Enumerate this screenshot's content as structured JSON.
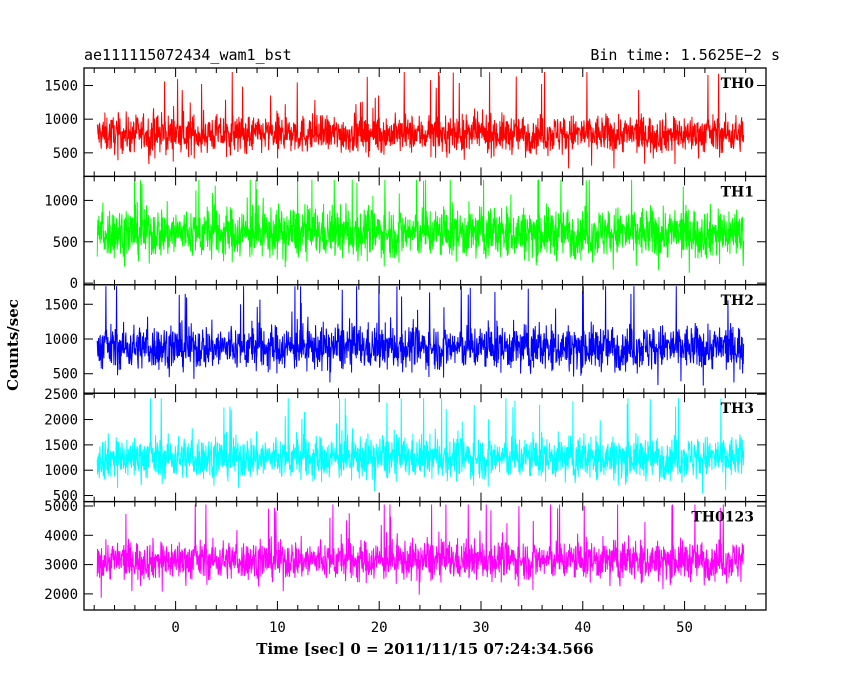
{
  "header": {
    "left_title": "ae111115072434_wam1_bst",
    "right_title": "Bin time: 1.5625E−2 s"
  },
  "chart_data": {
    "type": "line",
    "xlabel": "Time [sec] 0 = 2011/11/15 07:24:34.566",
    "ylabel": "Counts/sec",
    "xlim": [
      -9,
      58
    ],
    "x_range": [
      -7.7,
      55.8
    ],
    "x_ticks": [
      0,
      10,
      20,
      30,
      40,
      50
    ],
    "x_tick_labels": [
      "0",
      "10",
      "20",
      "30",
      "40",
      "50"
    ],
    "panels": [
      {
        "name": "TH0",
        "color": "#ff0000",
        "ylim": [
          150,
          1760
        ],
        "yticks": [
          500,
          1000,
          1500
        ],
        "ytick_labels": [
          "500",
          "1000",
          "1500"
        ],
        "mean": 780,
        "spread": 200,
        "low": 270,
        "high": 1700
      },
      {
        "name": "TH1",
        "color": "#00ff00",
        "ylim": [
          -20,
          1290
        ],
        "yticks": [
          0,
          500,
          1000
        ],
        "ytick_labels": [
          "0",
          "500",
          "1000"
        ],
        "mean": 610,
        "spread": 220,
        "low": 30,
        "high": 1250
      },
      {
        "name": "TH2",
        "color": "#0000ff",
        "ylim": [
          220,
          1780
        ],
        "yticks": [
          500,
          1000,
          1500
        ],
        "ytick_labels": [
          "500",
          "1000",
          "1500"
        ],
        "mean": 880,
        "spread": 230,
        "low": 280,
        "high": 1760
      },
      {
        "name": "TH3",
        "color": "#00ffff",
        "ylim": [
          380,
          2520
        ],
        "yticks": [
          500,
          1000,
          1500,
          2000,
          2500
        ],
        "ytick_labels": [
          "500",
          "1000",
          "1500",
          "2000",
          "2500"
        ],
        "mean": 1250,
        "spread": 300,
        "low": 480,
        "high": 2420
      },
      {
        "name": "TH0123",
        "color": "#ff00ff",
        "ylim": [
          1450,
          5150
        ],
        "yticks": [
          2000,
          3000,
          4000,
          5000
        ],
        "ytick_labels": [
          "2000",
          "3000",
          "4000",
          "5000"
        ],
        "mean": 3150,
        "spread": 480,
        "low": 1600,
        "high": 5050
      }
    ]
  }
}
